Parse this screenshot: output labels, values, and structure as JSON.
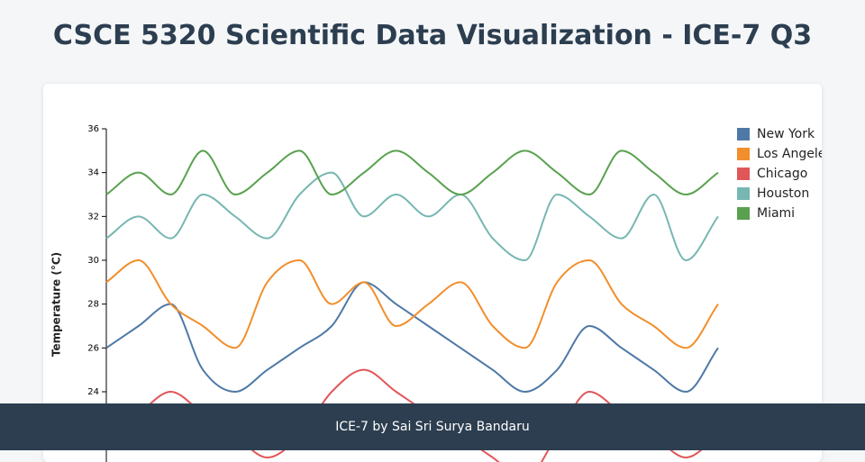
{
  "header": {
    "title": "CSCE 5320 Scientific Data Visualization - ICE-7 Q3"
  },
  "chart_data": {
    "type": "line",
    "y_label": "Temperature (°C)",
    "categories": [
      null,
      null,
      null,
      null,
      null,
      null,
      null,
      null,
      null,
      null,
      null,
      null,
      null,
      null,
      null,
      null,
      null,
      null,
      null,
      null
    ],
    "series": [
      {
        "name": "New York",
        "color": "#4e79a7",
        "values": [
          26,
          27,
          28,
          25,
          24,
          25,
          26,
          27,
          29,
          28,
          27,
          26,
          25,
          24,
          25,
          27,
          26,
          25,
          24,
          26
        ]
      },
      {
        "name": "Los Angeles",
        "color": "#f28e2b",
        "values": [
          29,
          30,
          28,
          27,
          26,
          29,
          30,
          28,
          29,
          27,
          28,
          29,
          27,
          26,
          29,
          30,
          28,
          27,
          26,
          28
        ]
      },
      {
        "name": "Chicago",
        "color": "#e15759",
        "values": [
          22,
          23,
          24,
          23,
          22,
          21,
          22,
          24,
          25,
          24,
          23,
          22,
          21,
          20,
          22,
          24,
          23,
          22,
          21,
          22
        ]
      },
      {
        "name": "Houston",
        "color": "#76b7b2",
        "values": [
          31,
          32,
          31,
          33,
          32,
          31,
          33,
          34,
          32,
          33,
          32,
          33,
          31,
          30,
          33,
          32,
          31,
          33,
          30,
          32
        ]
      },
      {
        "name": "Miami",
        "color": "#59a14f",
        "values": [
          33,
          34,
          33,
          35,
          33,
          34,
          35,
          33,
          34,
          35,
          34,
          33,
          34,
          35,
          34,
          33,
          35,
          34,
          33,
          34
        ]
      }
    ],
    "ylim": [
      20,
      36
    ],
    "yticks": [
      24,
      26,
      28,
      30,
      32,
      34,
      36
    ]
  },
  "footer": {
    "text": "ICE-7 by Sai Sri Surya Bandaru"
  }
}
